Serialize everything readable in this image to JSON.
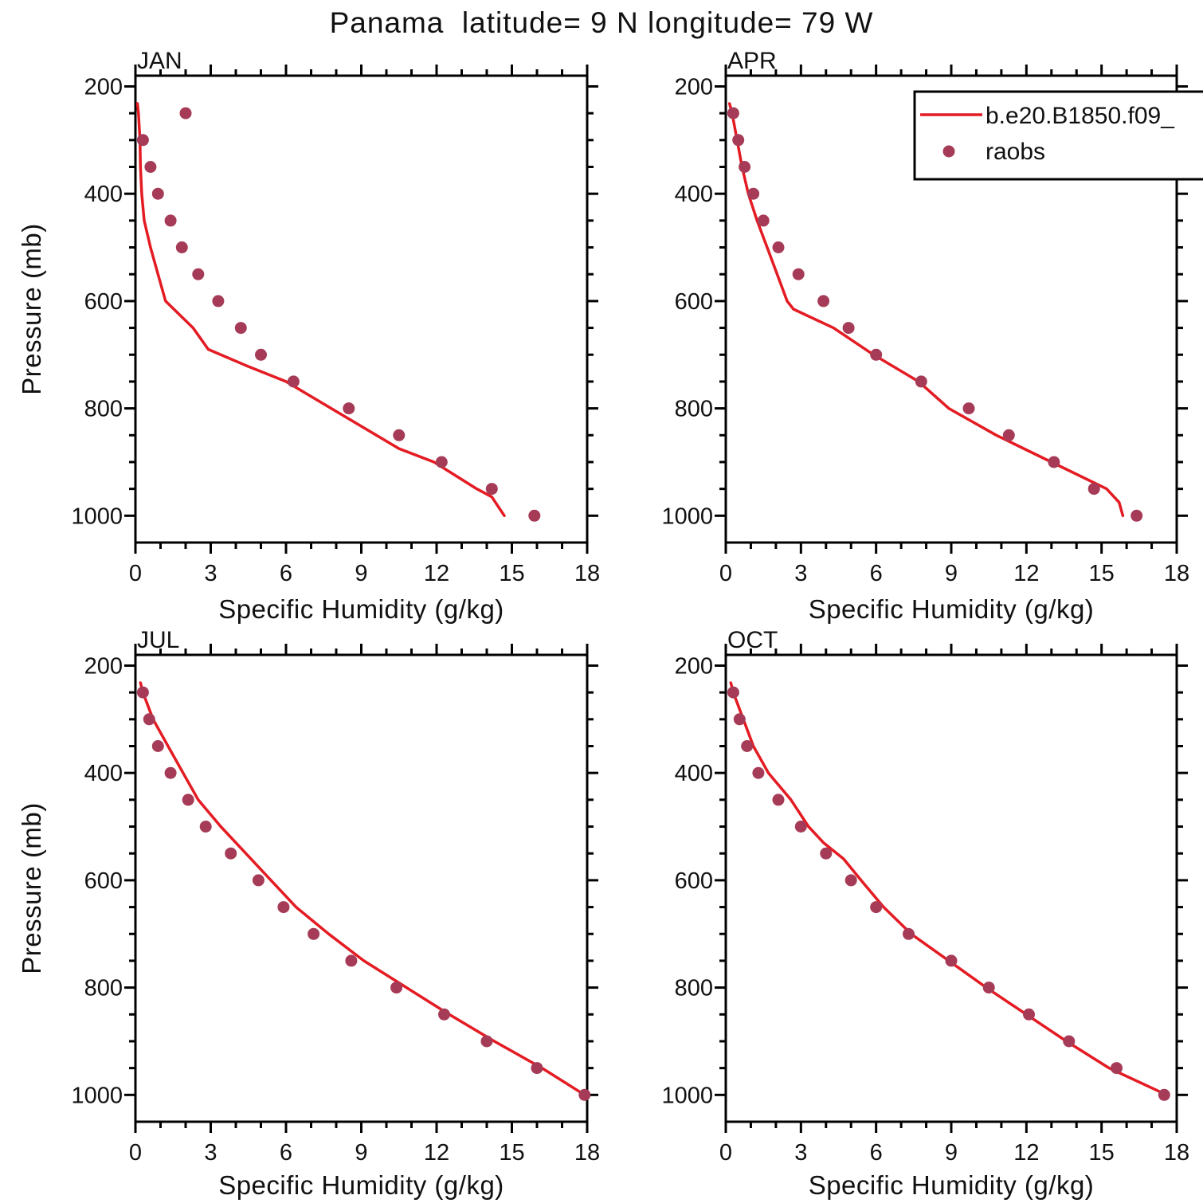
{
  "chart_data": {
    "type": "line",
    "title": "Panama  latitude= 9 N longitude= 79 W",
    "xlabel": "Specific Humidity (g/kg)",
    "ylabel": "Pressure (mb)",
    "xlim": [
      0,
      18
    ],
    "ylim_pressure": [
      180,
      1050
    ],
    "y_axis_inverted": true,
    "grid": false,
    "x_major_ticks": [
      0,
      3,
      6,
      9,
      12,
      15,
      18
    ],
    "x_minor_step": 1,
    "y_major_ticks": [
      200,
      400,
      600,
      800,
      1000
    ],
    "y_minor_step": 50,
    "colors": {
      "model_line": "#e41b23",
      "raobs_dot": "#a63b57",
      "axis": "#000000"
    },
    "legend": {
      "position": "top-right of APR panel, clipped at figure edge",
      "entries": [
        {
          "marker": "line",
          "label": "b.e20.B1850.f09_",
          "color": "#e41b23"
        },
        {
          "marker": "dot",
          "label": "raobs",
          "color": "#a63b57"
        }
      ]
    },
    "panels": [
      {
        "month": "JAN",
        "model": {
          "pressure": [
            232,
            250,
            300,
            350,
            400,
            450,
            500,
            550,
            600,
            650,
            690,
            720,
            750,
            800,
            850,
            875,
            900,
            950,
            965,
            1000
          ],
          "q": [
            0.08,
            0.12,
            0.18,
            0.2,
            0.25,
            0.35,
            0.6,
            0.9,
            1.2,
            2.3,
            2.9,
            4.4,
            6.0,
            7.8,
            9.6,
            10.5,
            11.9,
            13.6,
            14.2,
            14.7
          ]
        },
        "raobs": {
          "pressure": [
            250,
            300,
            350,
            400,
            450,
            500,
            550,
            600,
            650,
            700,
            750,
            800,
            850,
            900,
            950,
            1000
          ],
          "q": [
            2.0,
            0.3,
            0.6,
            0.9,
            1.4,
            1.85,
            2.5,
            3.3,
            4.2,
            5.0,
            6.3,
            8.5,
            10.5,
            12.2,
            14.2,
            15.9
          ]
        }
      },
      {
        "month": "APR",
        "model": {
          "pressure": [
            232,
            250,
            300,
            350,
            400,
            450,
            500,
            550,
            600,
            615,
            650,
            700,
            750,
            800,
            850,
            900,
            950,
            975,
            1000
          ],
          "q": [
            0.15,
            0.25,
            0.45,
            0.65,
            0.9,
            1.25,
            1.65,
            2.05,
            2.45,
            2.7,
            4.3,
            5.9,
            7.7,
            8.9,
            10.8,
            13.0,
            15.2,
            15.7,
            15.85
          ]
        },
        "raobs": {
          "pressure": [
            250,
            300,
            350,
            400,
            450,
            500,
            550,
            600,
            650,
            700,
            750,
            800,
            850,
            900,
            950,
            1000
          ],
          "q": [
            0.3,
            0.5,
            0.75,
            1.1,
            1.5,
            2.1,
            2.9,
            3.9,
            4.9,
            6.0,
            7.8,
            9.7,
            11.3,
            13.1,
            14.7,
            16.4
          ]
        }
      },
      {
        "month": "JUL",
        "model": {
          "pressure": [
            232,
            250,
            300,
            350,
            400,
            450,
            500,
            550,
            600,
            650,
            700,
            750,
            800,
            850,
            900,
            950,
            1000
          ],
          "q": [
            0.2,
            0.3,
            0.7,
            1.3,
            1.9,
            2.5,
            3.4,
            4.4,
            5.4,
            6.4,
            7.7,
            9.1,
            10.8,
            12.5,
            14.3,
            16.2,
            17.9
          ]
        },
        "raobs": {
          "pressure": [
            250,
            300,
            350,
            400,
            450,
            500,
            550,
            600,
            650,
            700,
            750,
            800,
            850,
            900,
            950,
            1000
          ],
          "q": [
            0.3,
            0.55,
            0.9,
            1.4,
            2.1,
            2.8,
            3.8,
            4.9,
            5.9,
            7.1,
            8.6,
            10.4,
            12.3,
            14.0,
            16.0,
            17.9
          ]
        }
      },
      {
        "month": "OCT",
        "model": {
          "pressure": [
            232,
            250,
            300,
            350,
            400,
            450,
            500,
            530,
            560,
            600,
            650,
            700,
            750,
            800,
            850,
            900,
            950,
            1000
          ],
          "q": [
            0.2,
            0.3,
            0.7,
            1.1,
            1.7,
            2.6,
            3.3,
            3.9,
            4.7,
            5.4,
            6.3,
            7.4,
            8.9,
            10.4,
            12.0,
            13.6,
            15.3,
            17.6
          ]
        },
        "raobs": {
          "pressure": [
            250,
            300,
            350,
            400,
            450,
            500,
            550,
            600,
            650,
            700,
            750,
            800,
            850,
            900,
            950,
            1000
          ],
          "q": [
            0.3,
            0.55,
            0.85,
            1.3,
            2.1,
            3.0,
            4.0,
            5.0,
            6.0,
            7.3,
            9.0,
            10.5,
            12.1,
            13.7,
            15.6,
            17.5
          ]
        }
      }
    ]
  }
}
